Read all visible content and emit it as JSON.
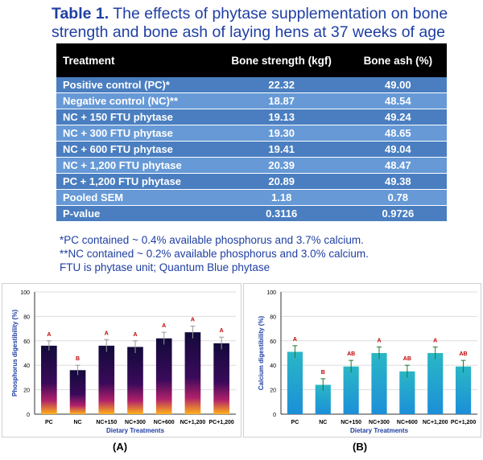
{
  "title": {
    "label": "Table 1.",
    "text": "The effects of phytase supplementation on bone strength and bone ash of laying hens at 37 weeks of age"
  },
  "table": {
    "headers": [
      "Treatment",
      "Bone strength (kgf)",
      "Bone ash (%)"
    ],
    "rows": [
      [
        "Positive control (PC)*",
        "22.32",
        "49.00"
      ],
      [
        "Negative control (NC)**",
        "18.87",
        "48.54"
      ],
      [
        "NC + 150 FTU phytase",
        "19.13",
        "49.24"
      ],
      [
        "NC + 300 FTU phytase",
        "19.30",
        "48.65"
      ],
      [
        "NC + 600 FTU phytase",
        "19.41",
        "49.04"
      ],
      [
        "NC + 1,200 FTU phytase",
        "20.39",
        "48.47"
      ],
      [
        "PC + 1,200 FTU phytase",
        "20.89",
        "49.38"
      ],
      [
        "Pooled SEM",
        "1.18",
        "0.78"
      ],
      [
        "P-value",
        "0.3116",
        "0.9726"
      ]
    ]
  },
  "notes": [
    "*PC contained ~ 0.4% available phosphorus and 3.7% calcium.",
    "**NC contained ~ 0.2% available phosphorus and 3.0% calcium.",
    "FTU is phytase unit; Quantum Blue  phytase"
  ],
  "colors": {
    "title": "#1f3fa3",
    "header_bg": "#000000",
    "row_odd": "#4a7ec0",
    "row_even": "#6699d6",
    "letters": "#c00000",
    "bar_b_top": "#2ab7c6",
    "bar_b_bottom": "#1c8fd8",
    "error_b": "#1a7a2a"
  },
  "chart_data": [
    {
      "type": "bar",
      "panel_label": "(A)",
      "categories": [
        "PC",
        "NC",
        "NC+150",
        "NC+300",
        "NC+600",
        "NC+1,200",
        "PC+1,200"
      ],
      "values": [
        56,
        36,
        56,
        55,
        62,
        67,
        58
      ],
      "errors": [
        4,
        4,
        5,
        5,
        5,
        5,
        5
      ],
      "letters": [
        "A",
        "B",
        "A",
        "A",
        "A",
        "A",
        "A"
      ],
      "xlabel": "Dietary Treatments",
      "ylabel": "Phosphorus digestibility (%)",
      "ylim": [
        0,
        100
      ],
      "yticks": [
        0,
        20,
        40,
        60,
        80,
        100
      ],
      "grid": true
    },
    {
      "type": "bar",
      "panel_label": "(B)",
      "categories": [
        "PC",
        "NC",
        "NC+150",
        "NC+300",
        "NC+600",
        "NC+1,200",
        "PC+1,200"
      ],
      "values": [
        51,
        24,
        39,
        50,
        35,
        50,
        39
      ],
      "errors": [
        5,
        5,
        5,
        5,
        5,
        5,
        5
      ],
      "letters": [
        "A",
        "B",
        "AB",
        "A",
        "AB",
        "A",
        "AB"
      ],
      "xlabel": "Dietary Treatments",
      "ylabel": "Calcium digestibility (%)",
      "ylim": [
        0,
        100
      ],
      "yticks": [
        0,
        20,
        40,
        60,
        80,
        100
      ],
      "grid": true
    }
  ]
}
